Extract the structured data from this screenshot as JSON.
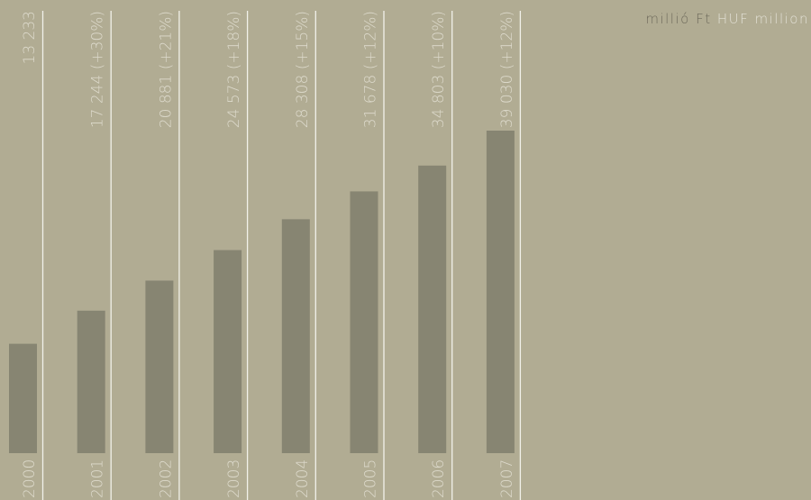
{
  "unit_label": {
    "hungarian": "millió Ft",
    "english": "HUF million"
  },
  "colors": {
    "background": "#b1ac93",
    "bar": "#878572",
    "divider": "#f2f1ea",
    "text_light": "#dedbcd",
    "text_dark": "#6f6b5c"
  },
  "chart_data": {
    "type": "bar",
    "categories": [
      "2000",
      "2001",
      "2002",
      "2003",
      "2004",
      "2005",
      "2006",
      "2007"
    ],
    "values": [
      13233,
      17244,
      20881,
      24573,
      28308,
      31678,
      34803,
      39030
    ],
    "value_labels": [
      "13 233",
      "17 244 (+30%)",
      "20 881 (+21%)",
      "24 573 (+18%)",
      "28 308 (+15%)",
      "31 678 (+12%)",
      "34 803 (+10%)",
      "39 030 (+12%)"
    ],
    "title": "",
    "ylabel": "",
    "xlabel": "",
    "ylim": [
      0,
      39030
    ],
    "grid": false,
    "legend": "none"
  }
}
